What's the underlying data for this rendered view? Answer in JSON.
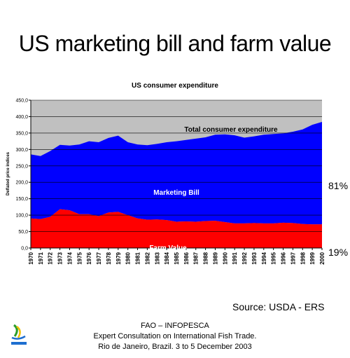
{
  "title": "US marketing bill and farm value",
  "subtitle": "US consumer expenditure",
  "ylabel": "Deflated price indices",
  "share_marketing": "81%",
  "share_farm": "19%",
  "source": "Source:  USDA - ERS",
  "footer": {
    "line1": "FAO – INFOPESCA",
    "line2": "Expert Consultation on International Fish Trade.",
    "line3": "Rio de Janeiro, Brazil. 3 to 5 December 2003"
  },
  "colors": {
    "total": "#c0c0c0",
    "marketing": "#0000ff",
    "farm": "#ff0000"
  },
  "chart_data": {
    "type": "area",
    "stacked": true,
    "x": [
      1970,
      1971,
      1972,
      1973,
      1974,
      1975,
      1976,
      1977,
      1978,
      1979,
      1980,
      1981,
      1982,
      1983,
      1984,
      1985,
      1986,
      1987,
      1988,
      1989,
      1990,
      1991,
      1992,
      1993,
      1994,
      1995,
      1996,
      1997,
      1998,
      1999,
      2000
    ],
    "series": [
      {
        "name": "Farm Value",
        "values": [
          90,
          88,
          95,
          118,
          115,
          103,
          103,
          97,
          108,
          110,
          100,
          90,
          86,
          87,
          85,
          80,
          81,
          80,
          82,
          83,
          79,
          75,
          75,
          76,
          75,
          75,
          77,
          76,
          73,
          72,
          72
        ]
      },
      {
        "name": "Marketing Bill",
        "values": [
          195,
          192,
          200,
          196,
          197,
          212,
          222,
          225,
          227,
          232,
          222,
          225,
          227,
          230,
          237,
          245,
          248,
          253,
          255,
          262,
          267,
          268,
          261,
          264,
          270,
          272,
          272,
          278,
          288,
          303,
          312
        ]
      },
      {
        "name": "Total consumer expenditure",
        "values": [
          285,
          280,
          295,
          314,
          312,
          315,
          325,
          322,
          335,
          342,
          322,
          315,
          313,
          317,
          322,
          325,
          329,
          333,
          337,
          345,
          346,
          343,
          336,
          340,
          345,
          347,
          349,
          354,
          361,
          375,
          384
        ]
      }
    ],
    "area_labels": [
      "Total consumer expenditure",
      "Marketing Bill",
      "Farm Value"
    ],
    "ylim": [
      0,
      450
    ],
    "yticks": [
      "0,0",
      "50,0",
      "100,0",
      "150,0",
      "200,0",
      "250,0",
      "300,0",
      "350,0",
      "400,0",
      "450,0"
    ],
    "xticks": [
      "1970",
      "1971",
      "1972",
      "1973",
      "1974",
      "1975",
      "1976",
      "1977",
      "1978",
      "1979",
      "1980",
      "1981",
      "1982",
      "1983",
      "1984",
      "1985",
      "1986",
      "1987",
      "1988",
      "1989",
      "1990",
      "1991",
      "1992",
      "1993",
      "1994",
      "1995",
      "1996",
      "1997",
      "1998",
      "1999",
      "2000"
    ],
    "gridlines": true
  }
}
